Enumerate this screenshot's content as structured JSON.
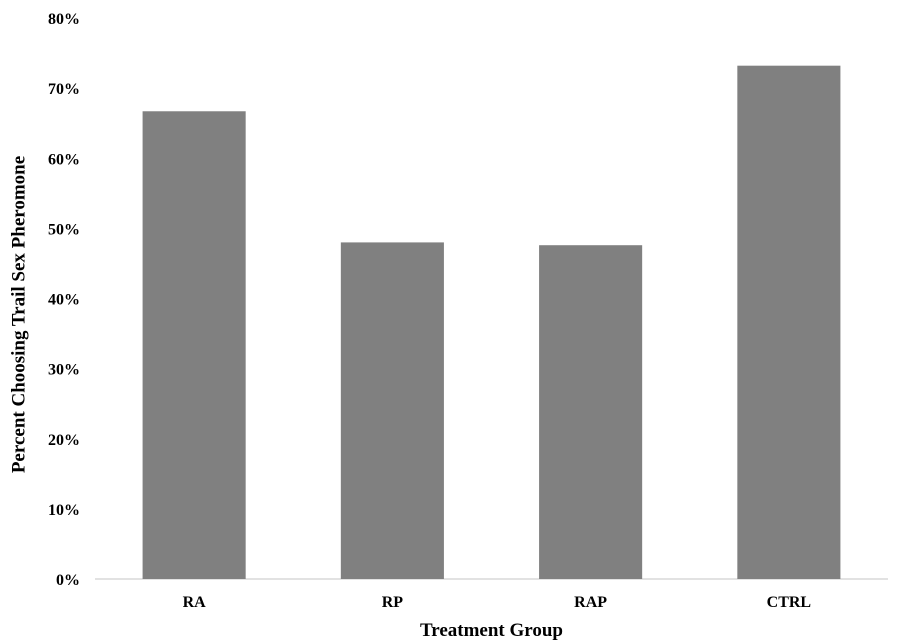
{
  "chart_data": {
    "type": "bar",
    "title": "",
    "xlabel": "Treatment Group",
    "ylabel": "Percent Choosing Trail Sex Pheromone",
    "categories": [
      "RA",
      "RP",
      "RAP",
      "CTRL"
    ],
    "values": [
      66.7,
      48.0,
      47.6,
      73.2
    ],
    "ylim": [
      0,
      80
    ],
    "yticks": [
      0,
      10,
      20,
      30,
      40,
      50,
      60,
      70,
      80
    ],
    "ytick_labels": [
      "0%",
      "10%",
      "20%",
      "30%",
      "40%",
      "50%",
      "60%",
      "70%",
      "80%"
    ],
    "grid": false,
    "legend": "none",
    "bar_color": "#808080",
    "axis_color": "#d9d9d9"
  }
}
